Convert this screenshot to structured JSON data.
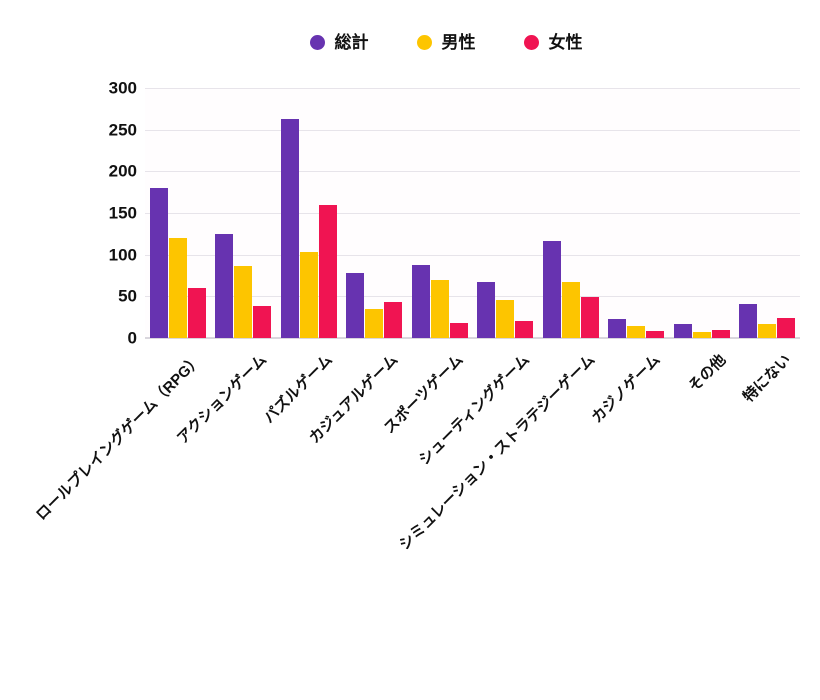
{
  "chart_data": {
    "type": "bar",
    "title": "",
    "xlabel": "",
    "ylabel": "",
    "categories": [
      "ロールプレイングゲーム（RPG）",
      "アクションゲーム",
      "パズルゲーム",
      "カジュアルゲーム",
      "スポーツゲーム",
      "シューティングゲーム",
      "シミュレーション・ストラテジーゲーム",
      "カジノゲーム",
      "その他",
      "特にない"
    ],
    "series": [
      {
        "name": "総計",
        "color": "#6733b0",
        "values": [
          180,
          125,
          263,
          78,
          88,
          67,
          116,
          23,
          17,
          41
        ]
      },
      {
        "name": "男性",
        "color": "#fdc500",
        "values": [
          120,
          86,
          103,
          35,
          70,
          46,
          67,
          15,
          7,
          17
        ]
      },
      {
        "name": "女性",
        "color": "#f01452",
        "values": [
          60,
          39,
          160,
          43,
          18,
          21,
          49,
          8,
          10,
          24
        ]
      }
    ],
    "ylim": [
      0,
      300
    ],
    "yticks": [
      0,
      50,
      100,
      150,
      200,
      250,
      300
    ],
    "grid": "horizontal",
    "legend_position": "top"
  },
  "colors": {
    "gridline": "#e7e4ea",
    "axis_baseline": "#d9d6dd",
    "text": "#111111",
    "background": "#ffffff"
  }
}
